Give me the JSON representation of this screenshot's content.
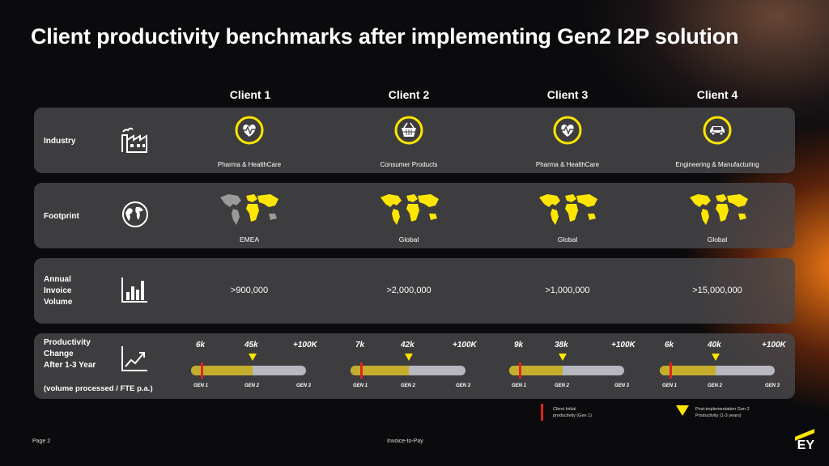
{
  "title": "Client productivity benchmarks after implementing Gen2 I2P solution",
  "clients": [
    "Client 1",
    "Client 2",
    "Client 3",
    "Client 4"
  ],
  "rows": {
    "industry": {
      "label": "Industry",
      "icon": "factory-icon",
      "values": [
        "Pharma & HealthCare",
        "Consumer Products",
        "Pharma & HealthCare",
        "Engineering & Manufacturing"
      ],
      "icons": [
        "heartbeat-icon",
        "basket-icon",
        "heartbeat-icon",
        "car-icon"
      ]
    },
    "footprint": {
      "label": "Footprint",
      "icon": "globe-icon",
      "values": [
        "EMEA",
        "Global",
        "Global",
        "Global"
      ]
    },
    "volume": {
      "label_lines": [
        "Annual",
        "Invoice",
        "Volume"
      ],
      "icon": "bar-chart-icon",
      "values": [
        ">900,000",
        ">2,000,000",
        ">1,000,000",
        ">15,000,000"
      ]
    },
    "productivity": {
      "label_lines": [
        "Productivity",
        "Change",
        "After 1-3 Year"
      ],
      "sublabel": "(volume processed / FTE p.a.)",
      "icon": "trend-up-icon",
      "max_label": "+100K",
      "gen_labels": [
        "GEN 1",
        "GEN 2",
        "GEN 3"
      ],
      "clients": [
        {
          "initial_label": "6k",
          "post_label": "45k",
          "initial": 6,
          "post": 45
        },
        {
          "initial_label": "7k",
          "post_label": "42k",
          "initial": 7,
          "post": 42
        },
        {
          "initial_label": "9k",
          "post_label": "38k",
          "initial": 9,
          "post": 38
        },
        {
          "initial_label": "6k",
          "post_label": "40k",
          "initial": 6,
          "post": 40
        }
      ]
    }
  },
  "legend": {
    "initial": [
      "Client Initial",
      "productivity (Gen 1)"
    ],
    "post": [
      "Post-implementation Gen 2",
      "Productivity (1-3 years)"
    ]
  },
  "footer": {
    "page": "Page 2",
    "center": "Invoice-to-Pay",
    "logo": "EY"
  },
  "colors": {
    "accent": "#ffe600",
    "marker": "#e2231a",
    "bar": "#b7b7c0",
    "fill": "#c4ae2c"
  }
}
